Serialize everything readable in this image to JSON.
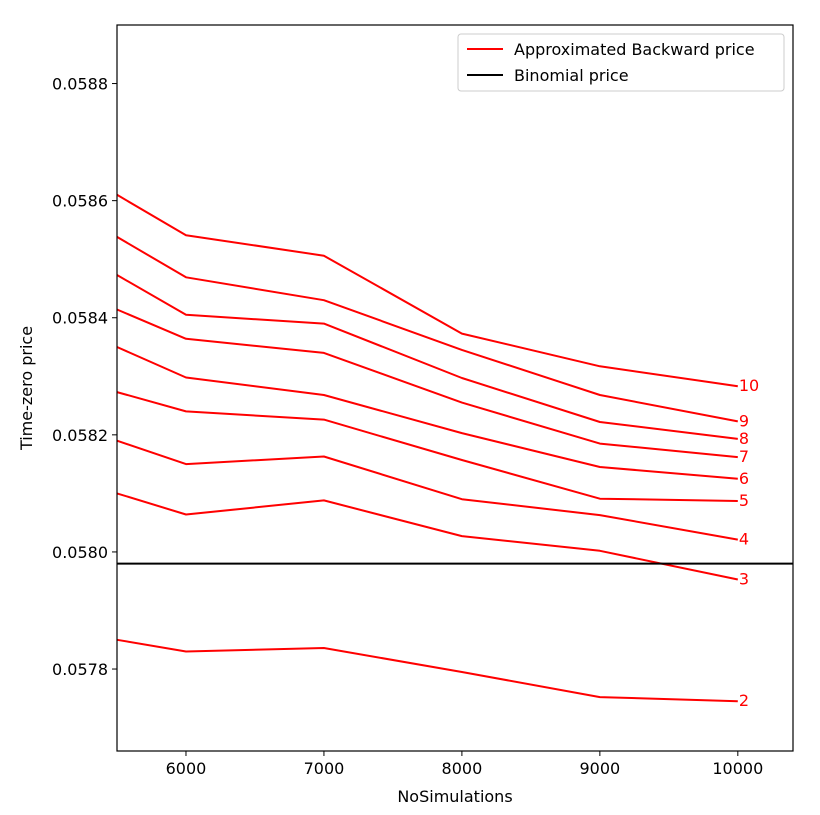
{
  "chart_data": {
    "type": "line",
    "xlabel": "NoSimulations",
    "ylabel": "Time-zero price",
    "xlim": [
      5500,
      10400
    ],
    "ylim": [
      0.05766,
      0.0589
    ],
    "x_ticks": [
      6000,
      7000,
      8000,
      9000,
      10000
    ],
    "x_tick_labels": [
      "6000",
      "7000",
      "8000",
      "9000",
      "10000"
    ],
    "y_ticks": [
      0.0578,
      0.058,
      0.0582,
      0.0584,
      0.0586,
      0.0588
    ],
    "y_tick_labels": [
      "0.0578",
      "0.0580",
      "0.0582",
      "0.0584",
      "0.0586",
      "0.0588"
    ],
    "x": [
      5500,
      6000,
      7000,
      8000,
      9000,
      10000
    ],
    "series_color": "#ff0000",
    "reference_color": "#000000",
    "legend": {
      "position": "top-right",
      "entries": [
        {
          "label": "Approximated Backward price",
          "color": "#ff0000"
        },
        {
          "label": "Binomial price",
          "color": "#000000"
        }
      ]
    },
    "series": [
      {
        "label": "2",
        "values": [
          0.05785,
          0.05783,
          0.057836,
          0.057795,
          0.057752,
          0.057745
        ]
      },
      {
        "label": "3",
        "values": [
          0.0581,
          0.058064,
          0.058088,
          0.058027,
          0.058002,
          0.057953
        ]
      },
      {
        "label": "4",
        "values": [
          0.05819,
          0.05815,
          0.058163,
          0.05809,
          0.058063,
          0.058021
        ]
      },
      {
        "label": "5",
        "values": [
          0.058273,
          0.05824,
          0.058226,
          0.058157,
          0.058091,
          0.058087
        ]
      },
      {
        "label": "6",
        "values": [
          0.05835,
          0.058298,
          0.058268,
          0.058203,
          0.058145,
          0.058125
        ]
      },
      {
        "label": "7",
        "values": [
          0.058414,
          0.058364,
          0.05834,
          0.058255,
          0.058185,
          0.058162
        ]
      },
      {
        "label": "8",
        "values": [
          0.058473,
          0.058405,
          0.05839,
          0.058297,
          0.058222,
          0.058193
        ]
      },
      {
        "label": "9",
        "values": [
          0.058538,
          0.058469,
          0.05843,
          0.058345,
          0.058268,
          0.058223
        ]
      },
      {
        "label": "10",
        "values": [
          0.05861,
          0.058541,
          0.058506,
          0.058373,
          0.058317,
          0.058283
        ]
      }
    ],
    "reference_line": {
      "label": "Binomial price",
      "value": 0.05798
    }
  }
}
